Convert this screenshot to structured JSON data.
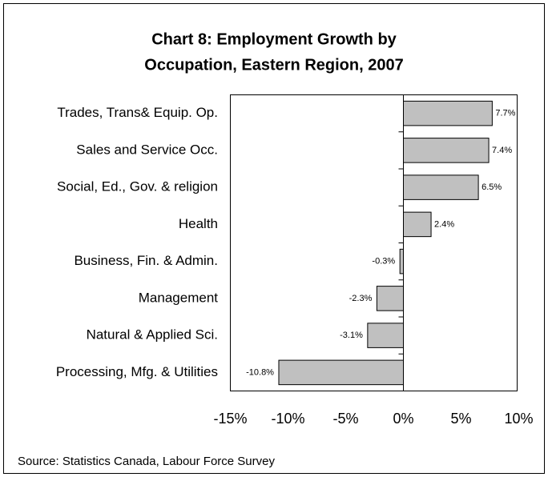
{
  "chart_data": {
    "type": "barh",
    "title": [
      "Chart 8: Employment Growth by",
      "Occupation, Eastern Region, 2007"
    ],
    "categories": [
      "Trades, Trans& Equip. Op.",
      "Sales and Service Occ.",
      "Social, Ed., Gov. & religion",
      "Health",
      "Business, Fin. & Admin.",
      "Management",
      "Natural & Applied Sci.",
      "Processing, Mfg. & Utilities"
    ],
    "values": [
      7.7,
      7.4,
      6.5,
      2.4,
      -0.3,
      -2.3,
      -3.1,
      -10.8
    ],
    "value_labels": [
      "7.7%",
      "7.4%",
      "6.5%",
      "2.4%",
      "-0.3%",
      "-2.3%",
      "-3.1%",
      "-10.8%"
    ],
    "color": "#c0c0c0",
    "xlim": [
      -15,
      10
    ],
    "xticks": [
      {
        "value": -15,
        "label": "-15%"
      },
      {
        "value": -10,
        "label": "-10%"
      },
      {
        "value": -5,
        "label": "-5%"
      },
      {
        "value": 0,
        "label": "0%"
      },
      {
        "value": 5,
        "label": "5%"
      },
      {
        "value": 10,
        "label": "10%"
      }
    ],
    "grid": false,
    "source": "Source: Statistics Canada, Labour Force Survey"
  }
}
